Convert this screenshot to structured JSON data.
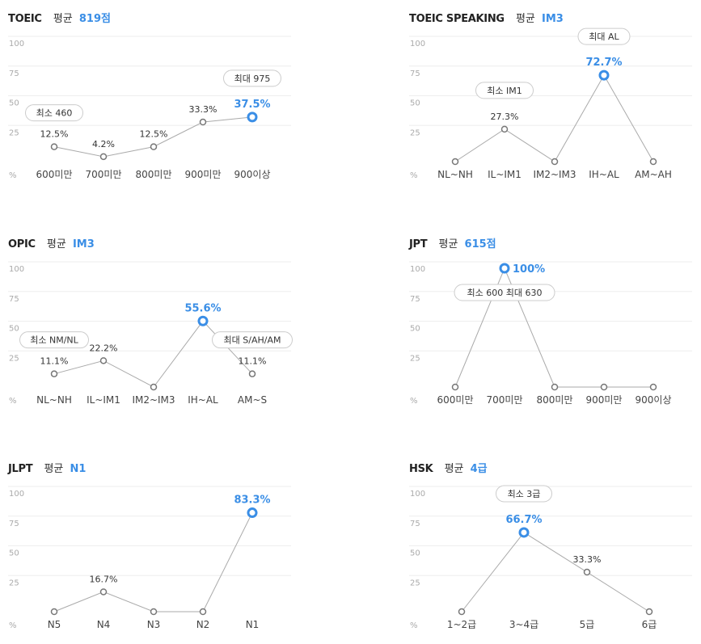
{
  "avg_label": "평균",
  "y_ticks": [
    "100",
    "75",
    "50",
    "25"
  ],
  "unit": "%",
  "colors": {
    "accent": "#3a8ee6",
    "line": "#aaaaaa",
    "marker": "#777777",
    "grid": "#eeeeee"
  },
  "chart_data": [
    {
      "type": "line",
      "title": "TOEIC",
      "average": "819점",
      "ylim": [
        0,
        100
      ],
      "categories": [
        "600미만",
        "700미만",
        "800미만",
        "900미만",
        "900이상"
      ],
      "values": [
        12.5,
        4.2,
        12.5,
        33.3,
        37.5
      ],
      "value_labels": [
        "12.5%",
        "4.2%",
        "12.5%",
        "33.3%",
        "37.5%"
      ],
      "highlight_index": 4,
      "callouts": [
        {
          "text": "최소 460",
          "index": 0
        },
        {
          "text": "최대 975",
          "index": 4
        }
      ]
    },
    {
      "type": "line",
      "title": "TOEIC SPEAKING",
      "average": "IM3",
      "ylim": [
        0,
        100
      ],
      "categories": [
        "NL~NH",
        "IL~IM1",
        "IM2~IM3",
        "IH~AL",
        "AM~AH"
      ],
      "values": [
        0,
        27.3,
        0,
        72.7,
        0
      ],
      "value_labels": [
        "",
        "27.3%",
        "",
        "72.7%",
        ""
      ],
      "highlight_index": 3,
      "callouts": [
        {
          "text": "최소 IM1",
          "index": 1
        },
        {
          "text": "최대 AL",
          "index": 3
        }
      ]
    },
    {
      "type": "line",
      "title": "OPIC",
      "average": "IM3",
      "ylim": [
        0,
        100
      ],
      "categories": [
        "NL~NH",
        "IL~IM1",
        "IM2~IM3",
        "IH~AL",
        "AM~S"
      ],
      "values": [
        11.1,
        22.2,
        0,
        55.6,
        11.1
      ],
      "value_labels": [
        "11.1%",
        "22.2%",
        "",
        "55.6%",
        "11.1%"
      ],
      "highlight_index": 3,
      "callouts": [
        {
          "text": "최소 NM/NL",
          "index": 0
        },
        {
          "text": "최대 S/AH/AM",
          "index": 4
        }
      ]
    },
    {
      "type": "line",
      "title": "JPT",
      "average": "615점",
      "ylim": [
        0,
        100
      ],
      "categories": [
        "600미만",
        "700미만",
        "800미만",
        "900미만",
        "900이상"
      ],
      "values": [
        0,
        100,
        0,
        0,
        0
      ],
      "value_labels": [
        "",
        "100%",
        "",
        "",
        ""
      ],
      "highlight_index": 1,
      "callouts": [
        {
          "text": "최소 600 최대 630",
          "index": 1
        }
      ]
    },
    {
      "type": "line",
      "title": "JLPT",
      "average": "N1",
      "ylim": [
        0,
        100
      ],
      "categories": [
        "N5",
        "N4",
        "N3",
        "N2",
        "N1"
      ],
      "values": [
        0,
        16.7,
        0,
        0,
        83.3
      ],
      "value_labels": [
        "",
        "16.7%",
        "",
        "",
        "83.3%"
      ],
      "highlight_index": 4,
      "callouts": []
    },
    {
      "type": "line",
      "title": "HSK",
      "average": "4급",
      "ylim": [
        0,
        100
      ],
      "categories": [
        "1~2급",
        "3~4급",
        "5급",
        "6급"
      ],
      "values": [
        0,
        66.7,
        33.3,
        0
      ],
      "value_labels": [
        "",
        "66.7%",
        "33.3%",
        ""
      ],
      "highlight_index": 1,
      "callouts": [
        {
          "text": "최소 3급",
          "index": 1
        }
      ]
    }
  ]
}
